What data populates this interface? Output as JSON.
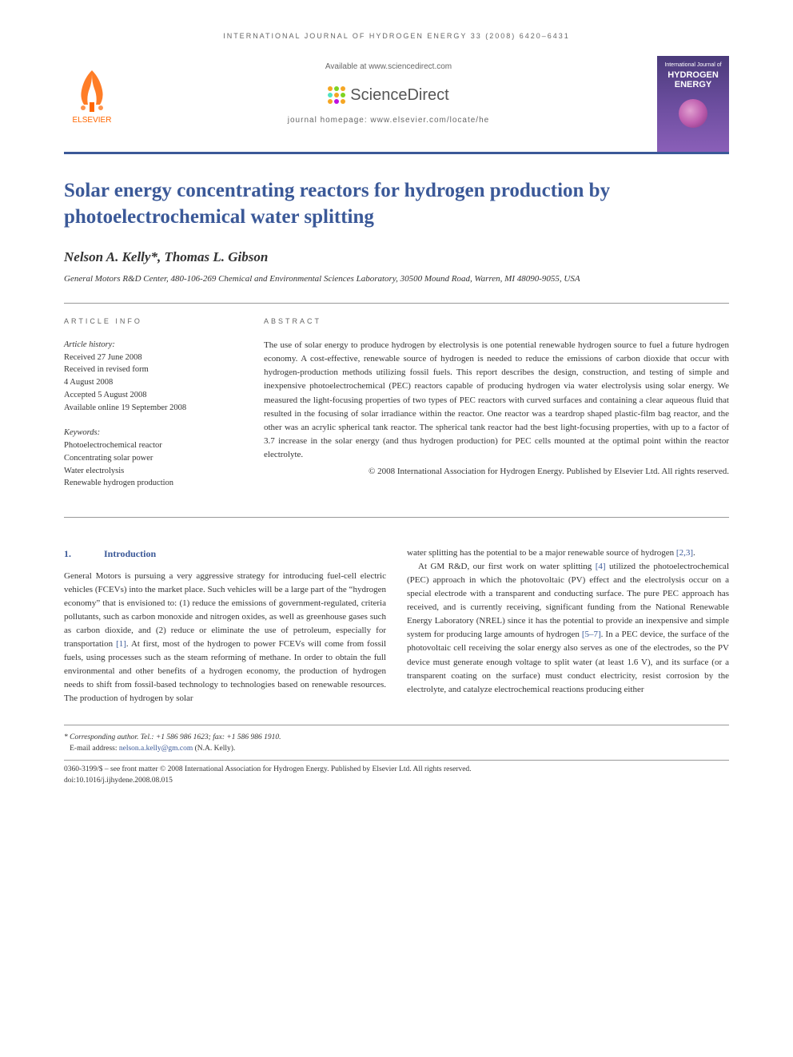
{
  "running_head": "INTERNATIONAL JOURNAL OF HYDROGEN ENERGY 33 (2008) 6420–6431",
  "header": {
    "available_at": "Available at www.sciencedirect.com",
    "sd_brand": "ScienceDirect",
    "homepage": "journal homepage: www.elsevier.com/locate/he",
    "elsevier": "ELSEVIER",
    "cover_top": "International Journal of",
    "cover_h": "HYDROGEN",
    "cover_e": "ENERGY",
    "sd_dot_colors": [
      "#f5a623",
      "#7ed321",
      "#f5a623",
      "#50e3c2",
      "#f5a623",
      "#7ed321",
      "#f5a623",
      "#bd10e0",
      "#f5a623"
    ]
  },
  "title": "Solar energy concentrating reactors for hydrogen production by photoelectrochemical water splitting",
  "authors": "Nelson A. Kelly*, Thomas L. Gibson",
  "affiliation": "General Motors R&D Center, 480-106-269 Chemical and Environmental Sciences Laboratory, 30500 Mound Road, Warren, MI 48090-9055, USA",
  "article_info": {
    "heading": "ARTICLE INFO",
    "history_label": "Article history:",
    "received": "Received 27 June 2008",
    "revised1": "Received in revised form",
    "revised2": "4 August 2008",
    "accepted": "Accepted 5 August 2008",
    "online": "Available online 19 September 2008",
    "keywords_label": "Keywords:",
    "kw1": "Photoelectrochemical reactor",
    "kw2": "Concentrating solar power",
    "kw3": "Water electrolysis",
    "kw4": "Renewable hydrogen production"
  },
  "abstract": {
    "heading": "ABSTRACT",
    "text": "The use of solar energy to produce hydrogen by electrolysis is one potential renewable hydrogen source to fuel a future hydrogen economy. A cost-effective, renewable source of hydrogen is needed to reduce the emissions of carbon dioxide that occur with hydrogen-production methods utilizing fossil fuels. This report describes the design, construction, and testing of simple and inexpensive photoelectrochemical (PEC) reactors capable of producing hydrogen via water electrolysis using solar energy. We measured the light-focusing properties of two types of PEC reactors with curved surfaces and containing a clear aqueous fluid that resulted in the focusing of solar irradiance within the reactor. One reactor was a teardrop shaped plastic-film bag reactor, and the other was an acrylic spherical tank reactor. The spherical tank reactor had the best light-focusing properties, with up to a factor of 3.7 increase in the solar energy (and thus hydrogen production) for PEC cells mounted at the optimal point within the reactor electrolyte.",
    "copyright": "© 2008 International Association for Hydrogen Energy. Published by Elsevier Ltd. All rights reserved."
  },
  "section1": {
    "num": "1.",
    "title": "Introduction"
  },
  "body": {
    "col1_p1a": "General Motors is pursuing a very aggressive strategy for introducing fuel-cell electric vehicles (FCEVs) into the market place. Such vehicles will be a large part of the “hydrogen economy” that is envisioned to: (1) reduce the emissions of government-regulated, criteria pollutants, such as carbon monoxide and nitrogen oxides, as well as greenhouse gases such as carbon dioxide, and (2) reduce or eliminate the use of petroleum, especially for transportation ",
    "ref1": "[1]",
    "col1_p1b": ". At first, most of the hydrogen to power FCEVs will come from fossil fuels, using processes such as the steam reforming of methane. In order to obtain the full environmental and other benefits of a hydrogen economy, the production of hydrogen needs to shift from fossil-based technology to technologies based on renewable resources. The production of hydrogen by solar",
    "col2_p1a": "water splitting has the potential to be a major renewable source of hydrogen ",
    "ref23": "[2,3]",
    "col2_p1b": ".",
    "col2_p2a": "At GM R&D, our first work on water splitting ",
    "ref4": "[4]",
    "col2_p2b": " utilized the photoelectrochemical (PEC) approach in which the photovoltaic (PV) effect and the electrolysis occur on a special electrode with a transparent and conducting surface. The pure PEC approach has received, and is currently receiving, significant funding from the National Renewable Energy Laboratory (NREL) since it has the potential to provide an inexpensive and simple system for producing large amounts of hydrogen ",
    "ref57": "[5–7]",
    "col2_p2c": ". In a PEC device, the surface of the photovoltaic cell receiving the solar energy also serves as one of the electrodes, so the PV device must generate enough voltage to split water (at least 1.6 V), and its surface (or a transparent coating on the surface) must conduct electricity, resist corrosion by the electrolyte, and catalyze electrochemical reactions producing either"
  },
  "footer": {
    "corr": "* Corresponding author. Tel.: +1 586 986 1623; fax: +1 586 986 1910.",
    "email_label": "E-mail address: ",
    "email": "nelson.a.kelly@gm.com",
    "email_suffix": " (N.A. Kelly).",
    "line2": "0360-3199/$ – see front matter © 2008 International Association for Hydrogen Energy. Published by Elsevier Ltd. All rights reserved.",
    "doi": "doi:10.1016/j.ijhydene.2008.08.015"
  },
  "colors": {
    "brand_blue": "#3b5998",
    "elsevier_orange": "#ff6600"
  }
}
